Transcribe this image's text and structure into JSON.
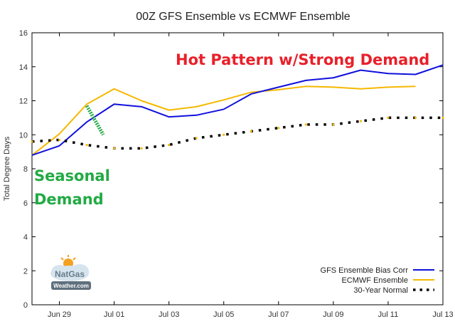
{
  "chart_data": {
    "type": "line",
    "title": "00Z GFS Ensemble vs ECMWF Ensemble",
    "ylabel": "Total Degree Days",
    "xlabel": "",
    "ylim": [
      0,
      16
    ],
    "xlim": [
      0,
      15
    ],
    "yticks": [
      0,
      2,
      4,
      6,
      8,
      10,
      12,
      14,
      16
    ],
    "xticks": [
      {
        "x": 1,
        "label": "Jun 29"
      },
      {
        "x": 3,
        "label": "Jul 01"
      },
      {
        "x": 5,
        "label": "Jul 03"
      },
      {
        "x": 7,
        "label": "Jul 05"
      },
      {
        "x": 9,
        "label": "Jul 07"
      },
      {
        "x": 11,
        "label": "Jul 09"
      },
      {
        "x": 13,
        "label": "Jul 11"
      },
      {
        "x": 15,
        "label": "Jul 13"
      }
    ],
    "grid": false,
    "legend_position": "bottom-right",
    "series": [
      {
        "name": "GFS Ensemble Bias Corr",
        "color": "#1010dd",
        "style": "solid",
        "points": [
          [
            0,
            8.8
          ],
          [
            1,
            9.35
          ],
          [
            2,
            10.75
          ],
          [
            3,
            11.8
          ],
          [
            4,
            11.65
          ],
          [
            5,
            11.05
          ],
          [
            6,
            11.15
          ],
          [
            7,
            11.5
          ],
          [
            8,
            12.4
          ],
          [
            9,
            12.8
          ],
          [
            10,
            13.2
          ],
          [
            11,
            13.35
          ],
          [
            12,
            13.8
          ],
          [
            13,
            13.6
          ],
          [
            14,
            13.55
          ],
          [
            15,
            14.1
          ]
        ]
      },
      {
        "name": "ECMWF Ensemble",
        "color": "#f5b800",
        "style": "solid",
        "points": [
          [
            0,
            8.8
          ],
          [
            1,
            10.05
          ],
          [
            2,
            11.8
          ],
          [
            3,
            12.7
          ],
          [
            4,
            12.0
          ],
          [
            5,
            11.45
          ],
          [
            6,
            11.65
          ],
          [
            7,
            12.05
          ],
          [
            8,
            12.5
          ],
          [
            9,
            12.65
          ],
          [
            10,
            12.85
          ],
          [
            11,
            12.8
          ],
          [
            12,
            12.7
          ],
          [
            13,
            12.8
          ],
          [
            14,
            12.85
          ]
        ]
      },
      {
        "name": "30-Year Normal",
        "color": "#000000",
        "style": "dotted",
        "points": [
          [
            0,
            9.6
          ],
          [
            1,
            9.7
          ],
          [
            2,
            9.4
          ],
          [
            3,
            9.2
          ],
          [
            4,
            9.2
          ],
          [
            5,
            9.4
          ],
          [
            6,
            9.8
          ],
          [
            7,
            10.0
          ],
          [
            8,
            10.2
          ],
          [
            9,
            10.4
          ],
          [
            10,
            10.6
          ],
          [
            11,
            10.6
          ],
          [
            12,
            10.8
          ],
          [
            13,
            11.0
          ],
          [
            14,
            11.0
          ],
          [
            15,
            11.0
          ]
        ]
      }
    ],
    "annotations": {
      "hot_text": "Hot Pattern w/Strong Demand",
      "hot_color": "#e8202a",
      "seasonal_line1": "Seasonal",
      "seasonal_line2": "Demand",
      "seasonal_color": "#22aa44",
      "green_marker_points": [
        [
          2,
          11.7
        ],
        [
          2.6,
          10.0
        ]
      ]
    }
  },
  "logo": {
    "line1": "NatGas",
    "line2": "Weather.com"
  }
}
